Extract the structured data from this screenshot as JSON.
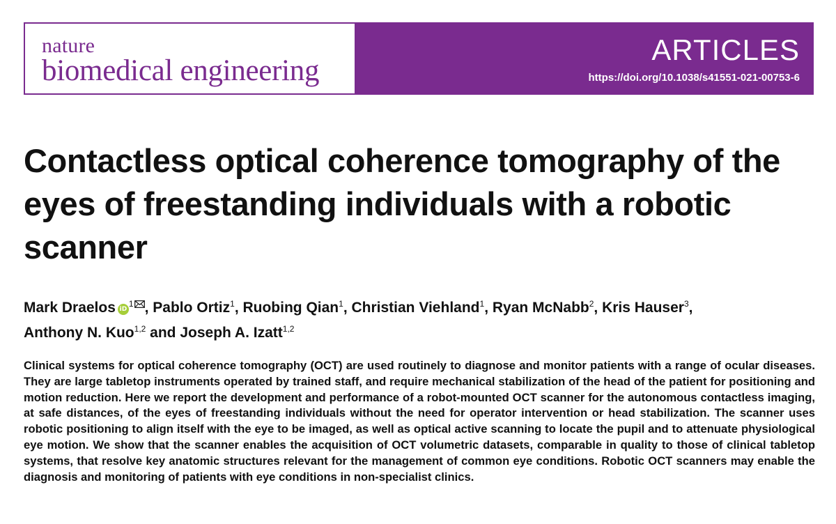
{
  "journal": {
    "name_line1": "nature",
    "name_line2": "biomedical engineering",
    "section": "ARTICLES",
    "doi": "https://doi.org/10.1038/s41551-021-00753-6",
    "brand_color": "#7a2b8f"
  },
  "article": {
    "title": "Contactless optical coherence tomography of the eyes of freestanding individuals with a robotic scanner",
    "authors": [
      {
        "name": "Mark Draelos",
        "aff": "1"
      },
      {
        "name": "Pablo Ortiz",
        "aff": "1"
      },
      {
        "name": "Ruobing Qian",
        "aff": "1"
      },
      {
        "name": "Christian Viehland",
        "aff": "1"
      },
      {
        "name": "Ryan McNabb",
        "aff": "2"
      },
      {
        "name": "Kris Hauser",
        "aff": "3"
      },
      {
        "name": "Anthony N. Kuo",
        "aff": "1,2"
      },
      {
        "name": "Joseph A. Izatt",
        "aff": "1,2"
      }
    ],
    "author_separator": ", ",
    "author_conjunction": " and ",
    "orcid_label": "iD",
    "abstract": "Clinical systems for optical coherence tomography (OCT) are used routinely to diagnose and monitor patients with a range of ocular diseases. They are large tabletop instruments operated by trained staff, and require mechanical stabilization of the head of the patient for positioning and motion reduction. Here we report the development and performance of a robot-mounted OCT scanner for the autonomous contactless imaging, at safe distances, of the eyes of freestanding individuals without the need for operator intervention or head stabilization. The scanner uses robotic positioning to align itself with the eye to be imaged, as well as optical active scanning to locate the pupil and to attenuate physiological eye motion. We show that the scanner enables the acquisition of OCT volumetric datasets, comparable in quality to those of clinical tabletop systems, that resolve key ana­tomic structures relevant for the management of common eye conditions. Robotic OCT scanners may enable the diagnosis and monitoring of patients with eye conditions in non-specialist clinics."
  }
}
